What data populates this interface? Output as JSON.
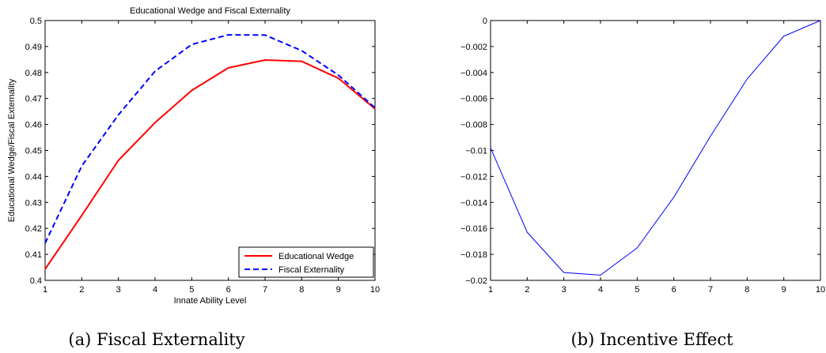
{
  "chart_data": [
    {
      "type": "line",
      "title": "Educational Wedge and Fiscal Externality",
      "xlabel": "Innate Ability Level",
      "ylabel": "Educational Wedge/Fiscal Externality",
      "x": [
        1,
        2,
        3,
        4,
        5,
        6,
        7,
        8,
        9,
        10
      ],
      "xlim": [
        1,
        10
      ],
      "ylim": [
        0.4,
        0.5
      ],
      "xticks": [
        "1",
        "2",
        "3",
        "4",
        "5",
        "6",
        "7",
        "8",
        "9",
        "10"
      ],
      "yticks": [
        "0.4",
        "0.41",
        "0.42",
        "0.43",
        "0.44",
        "0.45",
        "0.46",
        "0.47",
        "0.48",
        "0.49",
        "0.5"
      ],
      "grid": false,
      "legend": "bottom-right",
      "series": [
        {
          "name": "Educational Wedge",
          "color": "#ff0000",
          "dash": "solid",
          "values": [
            0.4043,
            0.425,
            0.4462,
            0.4607,
            0.4731,
            0.4818,
            0.4848,
            0.4843,
            0.4778,
            0.466
          ]
        },
        {
          "name": "Fiscal Externality",
          "color": "#0000ff",
          "dash": "dashed",
          "values": [
            0.4143,
            0.444,
            0.4637,
            0.4805,
            0.4908,
            0.4945,
            0.4944,
            0.4884,
            0.479,
            0.4664
          ]
        }
      ]
    },
    {
      "type": "line",
      "title": "",
      "xlabel": "",
      "ylabel": "",
      "x": [
        1,
        2,
        3,
        4,
        5,
        6,
        7,
        8,
        9,
        10
      ],
      "xlim": [
        1,
        10
      ],
      "ylim": [
        -0.02,
        0
      ],
      "xticks": [
        "1",
        "2",
        "3",
        "4",
        "5",
        "6",
        "7",
        "8",
        "9",
        "10"
      ],
      "yticks": [
        "−0.02",
        "−0.018",
        "−0.016",
        "−0.014",
        "−0.012",
        "−0.01",
        "−0.008",
        "−0.006",
        "−0.004",
        "−0.002",
        "0"
      ],
      "grid": false,
      "series": [
        {
          "color": "#0000ff",
          "dash": "solid",
          "values": [
            -0.0098,
            -0.0163,
            -0.0194,
            -0.0196,
            -0.0175,
            -0.0136,
            -0.0089,
            -0.0045,
            -0.0012,
            0.0
          ]
        }
      ]
    }
  ],
  "captions": {
    "left": "(a)  Fiscal Externality",
    "right": "(b)  Incentive Effect"
  }
}
